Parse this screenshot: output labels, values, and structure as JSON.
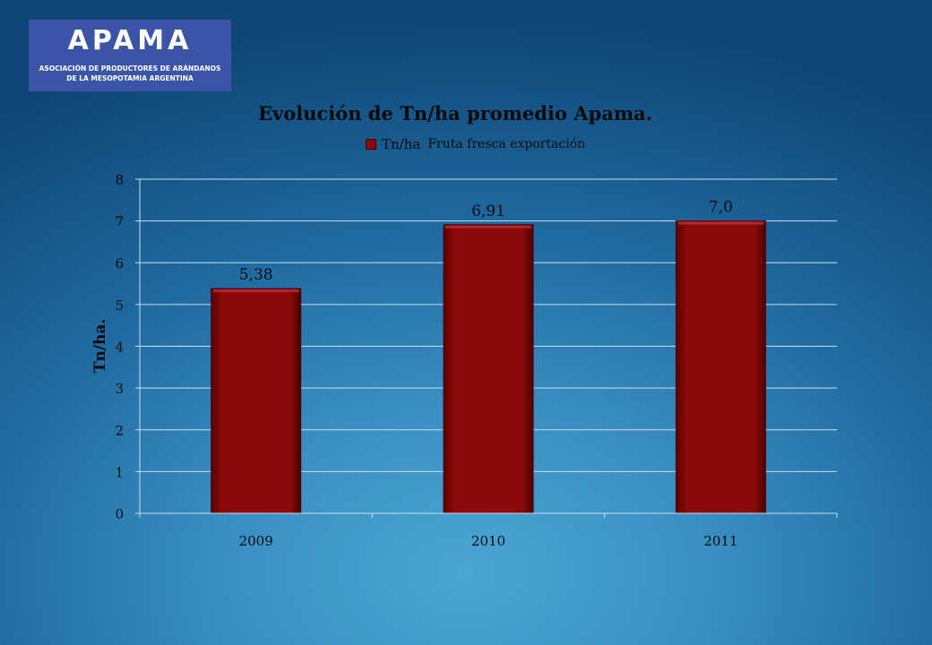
{
  "logo": {
    "word": "APAMA",
    "line1": "ASOCIACIÓN DE PRODUCTORES DE ARÁNDANOS",
    "line2": "DE LA MESOPOTAMIA ARGENTINA"
  },
  "legend_note": "Fruta fresca exportación",
  "chart_data": {
    "type": "bar",
    "title": "Evolución de Tn/ha promedio Apama.",
    "xlabel": "",
    "ylabel": "Tn/ha.",
    "categories": [
      "2009",
      "2010",
      "2011"
    ],
    "series": [
      {
        "name": "Tn/ha",
        "values": [
          5.38,
          6.91,
          7.0
        ],
        "labels": [
          "5,38",
          "6,91",
          "7,0"
        ]
      }
    ],
    "ylim": [
      0,
      8
    ],
    "yticks": [
      0,
      1,
      2,
      3,
      4,
      5,
      6,
      7,
      8
    ],
    "grid": true,
    "legend": "top",
    "colors": {
      "bar": "#8b0a0a",
      "bar_edge": "#4a0000",
      "grid": "#c9dff0"
    }
  }
}
